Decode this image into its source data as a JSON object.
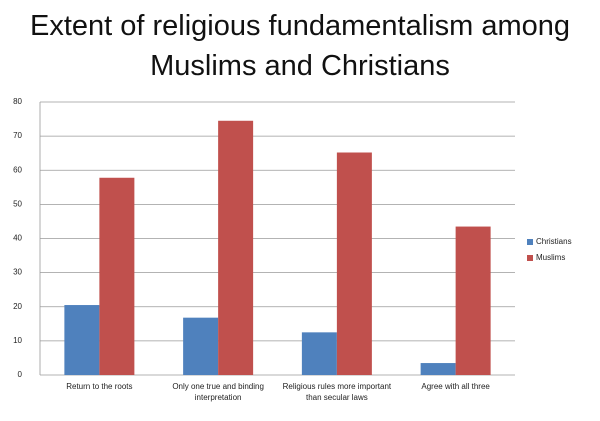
{
  "chart_data": {
    "type": "bar",
    "title": "Extent of religious fundamentalism among Muslims and Christians",
    "categories": [
      "Return to the roots",
      "Only one true and binding interpretation",
      "Religious rules more important than secular laws",
      "Agree with all three"
    ],
    "series": [
      {
        "name": "Christians",
        "color": "#4f81bd",
        "values": [
          20.5,
          16.8,
          12.5,
          3.5
        ]
      },
      {
        "name": "Muslims",
        "color": "#c0504d",
        "values": [
          57.8,
          74.5,
          65.2,
          43.5
        ]
      }
    ],
    "ylim": [
      0,
      80
    ],
    "yticks": [
      0,
      10,
      20,
      30,
      40,
      50,
      60,
      70,
      80
    ],
    "grid": true,
    "legend": "right"
  }
}
